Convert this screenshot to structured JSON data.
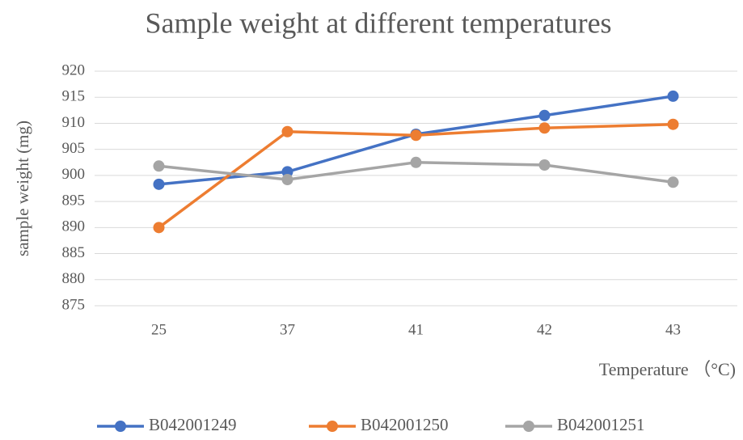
{
  "chart_data": {
    "type": "line",
    "title": "Sample weight at different temperatures",
    "x_label": "Temperature （°C)",
    "y_label": "sample weight (mg)",
    "categories": [
      "25",
      "37",
      "41",
      "42",
      "43"
    ],
    "series": [
      {
        "name": "B042001249",
        "color": "#4472c4",
        "values": [
          898.3,
          900.7,
          907.9,
          911.5,
          915.2
        ]
      },
      {
        "name": "B042001250",
        "color": "#ed7d31",
        "values": [
          890,
          908.4,
          907.7,
          909.1,
          909.8
        ]
      },
      {
        "name": "B042001251",
        "color": "#a5a5a5",
        "values": [
          901.8,
          899.2,
          902.5,
          902.0,
          898.7
        ]
      }
    ],
    "ylim": [
      875,
      920
    ],
    "yticks": [
      875,
      880,
      885,
      890,
      895,
      900,
      905,
      910,
      915,
      920
    ],
    "grid": true,
    "legend": "bottom"
  }
}
